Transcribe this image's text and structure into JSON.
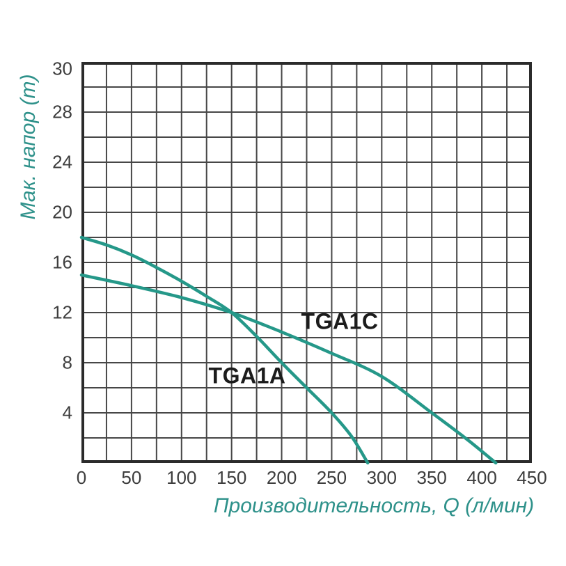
{
  "page": {
    "background": "#ffffff"
  },
  "colors": {
    "curve": "#259889",
    "axis_title_text": "#2e918a",
    "tick_text": "#3d3d3d",
    "grid_line": "#474747",
    "plot_border": "#2b2b2b",
    "curve_label_text": "#1c1c1c",
    "background": "#ffffff"
  },
  "chart_data": {
    "type": "line",
    "title": "",
    "xlabel": "Производительность, Q (л/мин)",
    "ylabel": "Мак. напор (m)",
    "xlim": [
      0,
      450
    ],
    "ylim": [
      0,
      32
    ],
    "x_grid_step": 25,
    "y_grid_step": 2,
    "grid": true,
    "legend_position": "inline-labels",
    "x_ticks": [
      0,
      50,
      100,
      150,
      200,
      250,
      300,
      350,
      400,
      450
    ],
    "y_ticks": [
      30,
      28,
      24,
      20,
      16,
      12,
      8,
      4
    ],
    "series": [
      {
        "name": "TGA1A",
        "color": "#259889",
        "points": [
          [
            0,
            18
          ],
          [
            25,
            17.4
          ],
          [
            50,
            16.6
          ],
          [
            75,
            15.6
          ],
          [
            100,
            14.5
          ],
          [
            125,
            13.3
          ],
          [
            150,
            12
          ],
          [
            175,
            10.1
          ],
          [
            200,
            8.0
          ],
          [
            225,
            6.0
          ],
          [
            250,
            4.0
          ],
          [
            270,
            2.1
          ],
          [
            286,
            0
          ]
        ]
      },
      {
        "name": "TGA1C",
        "color": "#259889",
        "points": [
          [
            0,
            15
          ],
          [
            50,
            14.15
          ],
          [
            100,
            13.2
          ],
          [
            150,
            12
          ],
          [
            200,
            10.45
          ],
          [
            250,
            8.75
          ],
          [
            300,
            6.9
          ],
          [
            350,
            4.0
          ],
          [
            385,
            1.9
          ],
          [
            414,
            0
          ]
        ]
      }
    ]
  }
}
